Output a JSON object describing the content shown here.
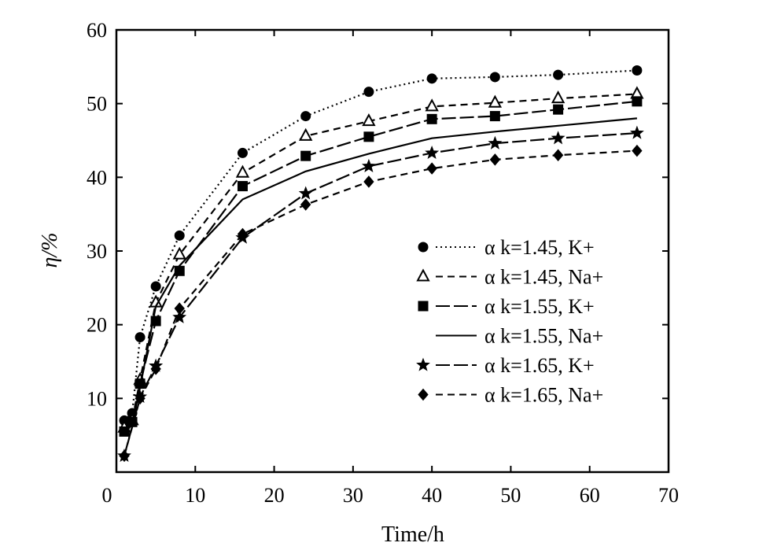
{
  "chart_data": {
    "type": "line",
    "xlabel": "Time/h",
    "ylabel": "η/%",
    "xlim": [
      0,
      70
    ],
    "ylim": [
      0,
      60
    ],
    "xticks": [
      0,
      10,
      20,
      30,
      40,
      50,
      60,
      70
    ],
    "yticks": [
      10,
      20,
      30,
      40,
      50,
      60
    ],
    "grid": false,
    "legend_position": "right-center",
    "series": [
      {
        "name": "α k=1.45, K+",
        "marker": "circle",
        "dash": "dotted",
        "x": [
          1,
          2,
          3,
          5,
          8,
          16,
          24,
          32,
          40,
          48,
          56,
          66
        ],
        "y": [
          7,
          8,
          18.3,
          25.2,
          32.1,
          43.3,
          48.3,
          51.6,
          53.4,
          53.6,
          53.9,
          54.5
        ]
      },
      {
        "name": "α k=1.45, Na+",
        "marker": "triangle",
        "dash": "dashed",
        "x": [
          1,
          2,
          3,
          5,
          8,
          16,
          24,
          32,
          40,
          48,
          56,
          66
        ],
        "y": [
          6,
          7,
          12.5,
          23,
          29.5,
          40.6,
          45.6,
          47.6,
          49.6,
          50.1,
          50.7,
          51.3
        ]
      },
      {
        "name": "α k=1.55, K+",
        "marker": "square",
        "dash": "longdash",
        "x": [
          1,
          2,
          3,
          5,
          8,
          16,
          24,
          32,
          40,
          48,
          56,
          66
        ],
        "y": [
          5.5,
          6.8,
          12,
          20.5,
          27.3,
          38.8,
          42.9,
          45.5,
          47.9,
          48.3,
          49.2,
          50.3
        ]
      },
      {
        "name": "α k=1.55, Na+",
        "marker": "none",
        "dash": "solid",
        "x": [
          1,
          2,
          3,
          5,
          8,
          16,
          24,
          32,
          40,
          48,
          56,
          66
        ],
        "y": [
          5.2,
          6.5,
          11.5,
          22.5,
          28,
          37,
          40.8,
          43.2,
          45.3,
          46.2,
          47,
          48
        ]
      },
      {
        "name": "α k=1.65, K+",
        "marker": "star",
        "dash": "longdash",
        "x": [
          1,
          3,
          5,
          8,
          16,
          24,
          32,
          40,
          48,
          56,
          66
        ],
        "y": [
          2.2,
          10.2,
          14.4,
          21,
          31.8,
          37.8,
          41.5,
          43.3,
          44.6,
          45.3,
          46
        ]
      },
      {
        "name": "α k=1.65, Na+",
        "marker": "diamond",
        "dash": "dashed",
        "x": [
          1,
          3,
          5,
          8,
          16,
          24,
          32,
          40,
          48,
          56,
          66
        ],
        "y": [
          2.2,
          10,
          14,
          22.2,
          32.3,
          36.3,
          39.4,
          41.2,
          42.4,
          43,
          43.6
        ]
      }
    ]
  }
}
